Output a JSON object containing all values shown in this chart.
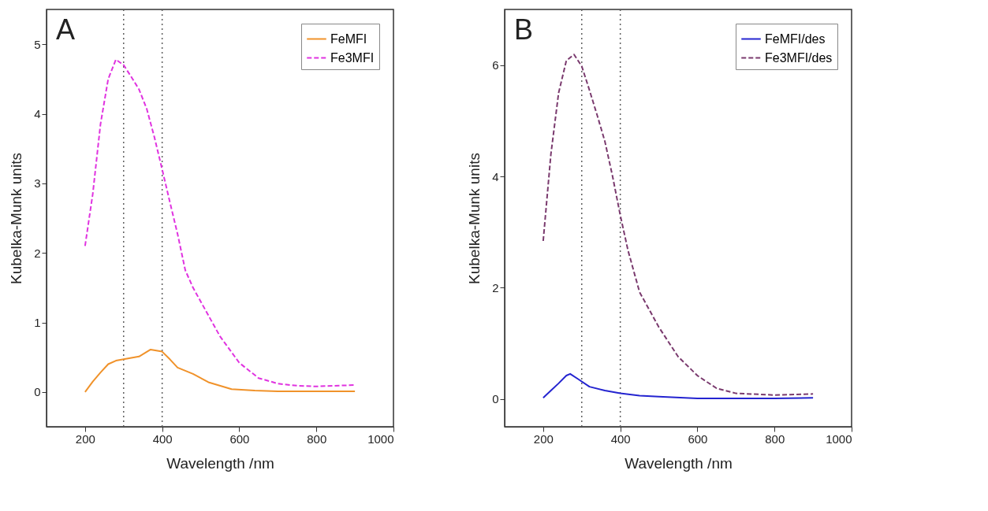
{
  "chart_data": [
    {
      "type": "line",
      "xlabel": "Wavelength /nm",
      "ylabel": "Kubelka-Munk units",
      "annotations": [
        "A"
      ],
      "xlim": [
        100,
        1000
      ],
      "xticks": [
        200,
        400,
        600,
        800,
        1000
      ],
      "ylim": [
        -0.5,
        5.5
      ],
      "yticks": [
        0,
        1,
        2,
        3,
        4,
        5
      ],
      "grid": false,
      "legend": "top right",
      "marker": "none",
      "ref_lines": [
        {
          "axis": "x",
          "value": 300,
          "color": "#606060",
          "line_style": "dotted"
        },
        {
          "axis": "x",
          "value": 400,
          "color": "#606060",
          "line_style": "dotted"
        }
      ],
      "series": [
        {
          "name": "FeMFI",
          "color": "#f0922a",
          "line_style": "solid",
          "x": [
            200,
            220,
            240,
            260,
            280,
            300,
            340,
            370,
            400,
            420,
            440,
            480,
            520,
            580,
            640,
            700,
            800,
            900
          ],
          "values": [
            0,
            0.15,
            0.28,
            0.4,
            0.45,
            0.47,
            0.51,
            0.61,
            0.58,
            0.47,
            0.35,
            0.26,
            0.14,
            0.04,
            0.02,
            0.01,
            0.01,
            0.01
          ]
        },
        {
          "name": "Fe3MFI",
          "color": "#e033e0",
          "line_style": "dashed",
          "x": [
            200,
            220,
            240,
            260,
            280,
            300,
            320,
            340,
            360,
            380,
            400,
            420,
            440,
            460,
            480,
            500,
            550,
            600,
            650,
            700,
            750,
            800,
            900
          ],
          "values": [
            2.1,
            2.85,
            3.85,
            4.5,
            4.78,
            4.7,
            4.53,
            4.35,
            4.07,
            3.66,
            3.2,
            2.73,
            2.27,
            1.75,
            1.5,
            1.3,
            0.8,
            0.42,
            0.2,
            0.12,
            0.09,
            0.08,
            0.1
          ]
        }
      ]
    },
    {
      "type": "line",
      "xlabel": "Wavelength /nm",
      "ylabel": "Kubelka-Munk units",
      "annotations": [
        "B"
      ],
      "xlim": [
        100,
        1000
      ],
      "xticks": [
        200,
        400,
        600,
        800,
        1000
      ],
      "ylim": [
        -0.5,
        7
      ],
      "yticks": [
        0,
        2,
        4,
        6
      ],
      "grid": false,
      "legend": "top right",
      "marker": "none",
      "ref_lines": [
        {
          "axis": "x",
          "value": 300,
          "color": "#606060",
          "line_style": "dotted"
        },
        {
          "axis": "x",
          "value": 400,
          "color": "#606060",
          "line_style": "dotted"
        }
      ],
      "series": [
        {
          "name": "FeMFI/des",
          "color": "#2424d0",
          "line_style": "solid",
          "x": [
            200,
            220,
            240,
            260,
            270,
            290,
            320,
            360,
            400,
            450,
            500,
            600,
            700,
            800,
            900
          ],
          "values": [
            0.02,
            0.15,
            0.28,
            0.42,
            0.45,
            0.36,
            0.22,
            0.15,
            0.1,
            0.06,
            0.04,
            0.01,
            0.01,
            0.01,
            0.02
          ]
        },
        {
          "name": "Fe3MFI/des",
          "color": "#7a3a6e",
          "line_style": "dashed",
          "x": [
            200,
            220,
            240,
            260,
            280,
            300,
            320,
            340,
            360,
            380,
            400,
            420,
            450,
            500,
            550,
            600,
            650,
            700,
            800,
            900
          ],
          "values": [
            2.84,
            4.4,
            5.5,
            6.08,
            6.19,
            5.98,
            5.55,
            5.1,
            4.63,
            4.0,
            3.3,
            2.67,
            1.92,
            1.29,
            0.76,
            0.42,
            0.19,
            0.1,
            0.07,
            0.09
          ]
        }
      ]
    }
  ]
}
